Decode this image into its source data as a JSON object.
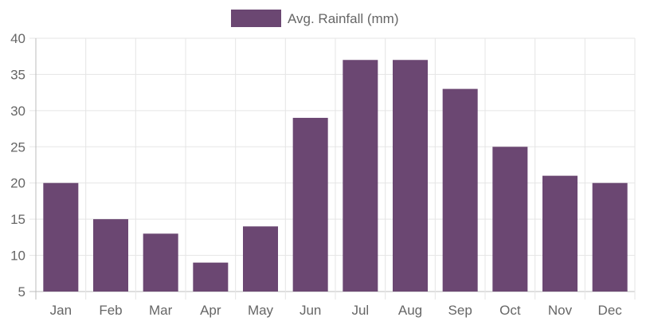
{
  "chart_data": {
    "type": "bar",
    "categories": [
      "Jan",
      "Feb",
      "Mar",
      "Apr",
      "May",
      "Jun",
      "Jul",
      "Aug",
      "Sep",
      "Oct",
      "Nov",
      "Dec"
    ],
    "series": [
      {
        "name": "Avg. Rainfall (mm)",
        "values": [
          20,
          15,
          13,
          9,
          14,
          29,
          37,
          37,
          33,
          25,
          21,
          20
        ],
        "color": "#6b4772"
      }
    ],
    "title": "",
    "xlabel": "",
    "ylabel": "",
    "ylim": [
      5,
      40
    ],
    "yticks": [
      5,
      10,
      15,
      20,
      25,
      30,
      35,
      40
    ],
    "grid": true,
    "legend": "top-center",
    "colors": {
      "bar": "#6b4772",
      "grid": "#e5e5e5",
      "axis": "#bdbdbd",
      "text": "#666666"
    }
  }
}
